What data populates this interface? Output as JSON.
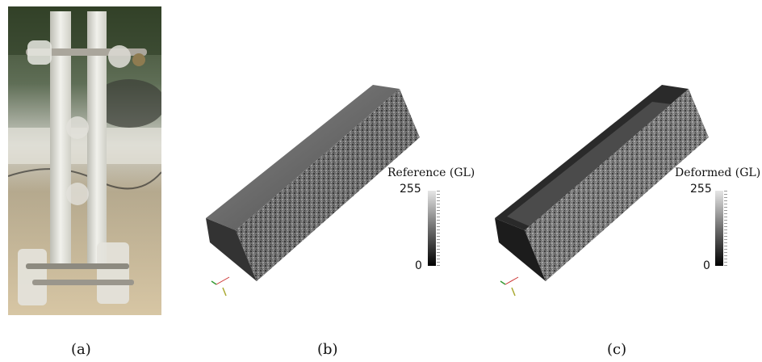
{
  "captions": {
    "a": "(a)",
    "b": "(b)",
    "c": "(c)"
  },
  "colorbar_b": {
    "title": "Reference (GL)",
    "max": "255",
    "min": "0"
  },
  "colorbar_c": {
    "title": "Deformed (GL)",
    "max": "255",
    "min": "0"
  }
}
